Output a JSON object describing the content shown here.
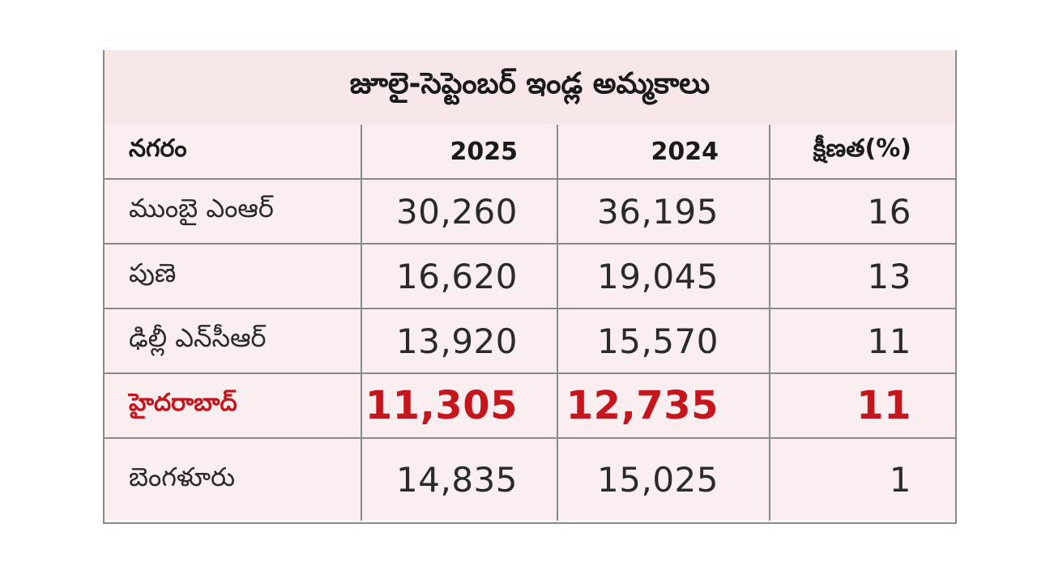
{
  "title": "జూలై-సెప్టెంబర్ ఇండ్ల అమ్మకాలు",
  "columns": [
    "నగరం",
    "2025",
    "2024",
    "క్షీణత(%)"
  ],
  "rows": [
    {
      "city": "ముంబై ఎంఆర్",
      "y2025": "30,260",
      "y2024": "36,195",
      "decline": "16"
    },
    {
      "city": "పుణె",
      "y2025": "16,620",
      "y2024": "19,045",
      "decline": "13"
    },
    {
      "city": "ఢిల్లీ ఎన్‌సీఆర్",
      "y2025": "13,920",
      "y2024": "15,570",
      "decline": "11"
    },
    {
      "city": "హైదరాబాద్",
      "y2025": "11,305",
      "y2024": "12,735",
      "decline": "11"
    },
    {
      "city": "బెంగళూరు",
      "y2025": "14,835",
      "y2024": "15,025",
      "decline": "1"
    }
  ],
  "colors": {
    "highlight": "#c4161c",
    "title_bg": "#f7e7e9",
    "row_bg": "#fbeef0",
    "border": "#8a8a8a"
  }
}
